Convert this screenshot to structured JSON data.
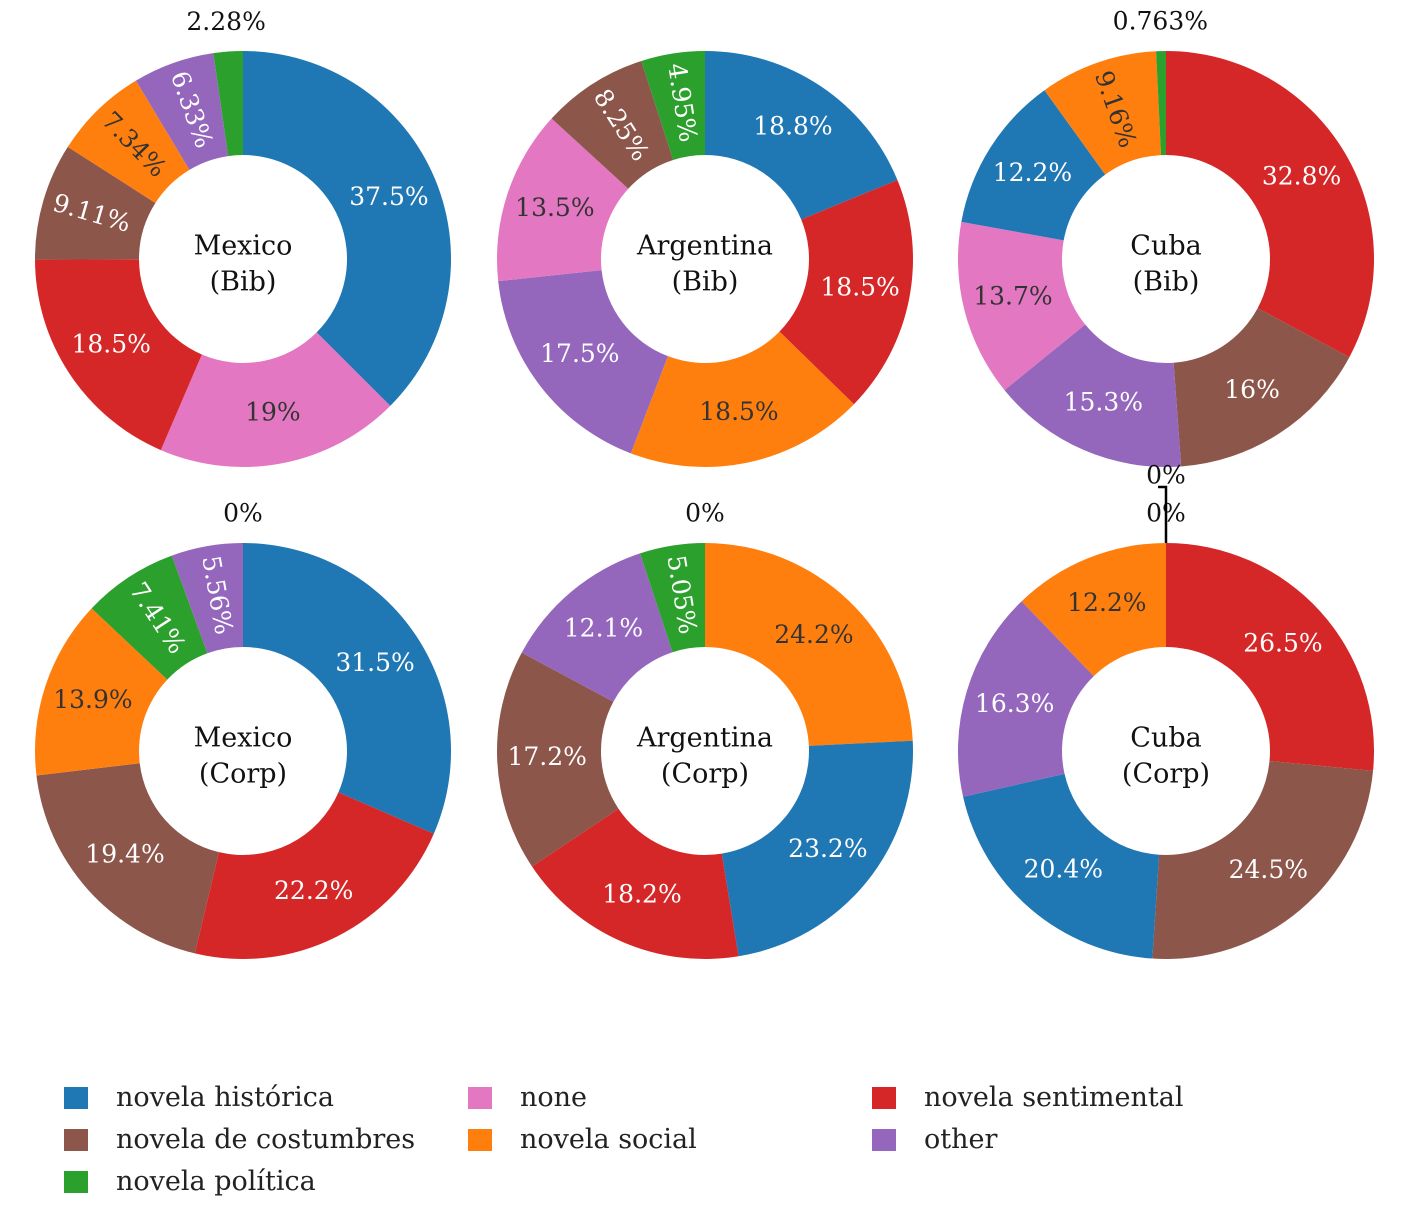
{
  "colors": {
    "novela histórica": "#1f77b4",
    "novela de costumbres": "#8c564b",
    "novela política": "#2ca02c",
    "none": "#e377c2",
    "novela social": "#ff7f0e",
    "novela sentimental": "#d62728",
    "other": "#9467bd"
  },
  "legend": {
    "items": [
      "novela histórica",
      "novela de costumbres",
      "novela política",
      "none",
      "novela social",
      "novela sentimental",
      "other"
    ]
  },
  "chart_data": [
    {
      "type": "pie",
      "donut": true,
      "title": "Mexico\n(Bib)",
      "slices": [
        {
          "category": "novela histórica",
          "value": 37.5,
          "label": "37.5%"
        },
        {
          "category": "none",
          "value": 19.0,
          "label": "19%"
        },
        {
          "category": "novela sentimental",
          "value": 18.5,
          "label": "18.5%"
        },
        {
          "category": "novela de costumbres",
          "value": 9.11,
          "label": "9.11%"
        },
        {
          "category": "novela social",
          "value": 7.34,
          "label": "7.34%"
        },
        {
          "category": "other",
          "value": 6.33,
          "label": "6.33%"
        },
        {
          "category": "novela política",
          "value": 2.28,
          "label": "2.28%"
        }
      ]
    },
    {
      "type": "pie",
      "donut": true,
      "title": "Argentina\n(Bib)",
      "slices": [
        {
          "category": "novela histórica",
          "value": 18.8,
          "label": "18.8%"
        },
        {
          "category": "novela sentimental",
          "value": 18.5,
          "label": "18.5%"
        },
        {
          "category": "novela social",
          "value": 18.5,
          "label": "18.5%"
        },
        {
          "category": "other",
          "value": 17.5,
          "label": "17.5%"
        },
        {
          "category": "none",
          "value": 13.5,
          "label": "13.5%"
        },
        {
          "category": "novela de costumbres",
          "value": 8.25,
          "label": "8.25%"
        },
        {
          "category": "novela política",
          "value": 4.95,
          "label": "4.95%"
        }
      ]
    },
    {
      "type": "pie",
      "donut": true,
      "title": "Cuba\n(Bib)",
      "slices": [
        {
          "category": "novela sentimental",
          "value": 32.8,
          "label": "32.8%"
        },
        {
          "category": "novela de costumbres",
          "value": 16.0,
          "label": "16%"
        },
        {
          "category": "other",
          "value": 15.3,
          "label": "15.3%"
        },
        {
          "category": "none",
          "value": 13.7,
          "label": "13.7%"
        },
        {
          "category": "novela histórica",
          "value": 12.2,
          "label": "12.2%"
        },
        {
          "category": "novela social",
          "value": 9.16,
          "label": "9.16%"
        },
        {
          "category": "novela política",
          "value": 0.763,
          "label": "0.763%"
        }
      ]
    },
    {
      "type": "pie",
      "donut": true,
      "title": "Mexico\n(Corp)",
      "slices": [
        {
          "category": "novela histórica",
          "value": 31.5,
          "label": "31.5%"
        },
        {
          "category": "novela sentimental",
          "value": 22.2,
          "label": "22.2%"
        },
        {
          "category": "novela de costumbres",
          "value": 19.4,
          "label": "19.4%"
        },
        {
          "category": "novela social",
          "value": 13.9,
          "label": "13.9%"
        },
        {
          "category": "novela política",
          "value": 7.41,
          "label": "7.41%"
        },
        {
          "category": "other",
          "value": 5.56,
          "label": "5.56%"
        },
        {
          "category": "none",
          "value": 0,
          "label": "0%"
        }
      ]
    },
    {
      "type": "pie",
      "donut": true,
      "title": "Argentina\n(Corp)",
      "slices": [
        {
          "category": "novela social",
          "value": 24.2,
          "label": "24.2%"
        },
        {
          "category": "novela histórica",
          "value": 23.2,
          "label": "23.2%"
        },
        {
          "category": "novela sentimental",
          "value": 18.2,
          "label": "18.2%"
        },
        {
          "category": "novela de costumbres",
          "value": 17.2,
          "label": "17.2%"
        },
        {
          "category": "other",
          "value": 12.1,
          "label": "12.1%"
        },
        {
          "category": "novela política",
          "value": 5.05,
          "label": "5.05%"
        },
        {
          "category": "none",
          "value": 0,
          "label": "0%"
        }
      ]
    },
    {
      "type": "pie",
      "donut": true,
      "title": "Cuba\n(Corp)",
      "slices": [
        {
          "category": "novela sentimental",
          "value": 26.5,
          "label": "26.5%"
        },
        {
          "category": "novela de costumbres",
          "value": 24.5,
          "label": "24.5%"
        },
        {
          "category": "novela histórica",
          "value": 20.4,
          "label": "20.4%"
        },
        {
          "category": "other",
          "value": 16.3,
          "label": "16.3%"
        },
        {
          "category": "novela social",
          "value": 12.2,
          "label": "12.2%"
        },
        {
          "category": "novela política",
          "value": 0,
          "label": "0%"
        },
        {
          "category": "none",
          "value": 0,
          "label": "0%"
        }
      ]
    }
  ]
}
